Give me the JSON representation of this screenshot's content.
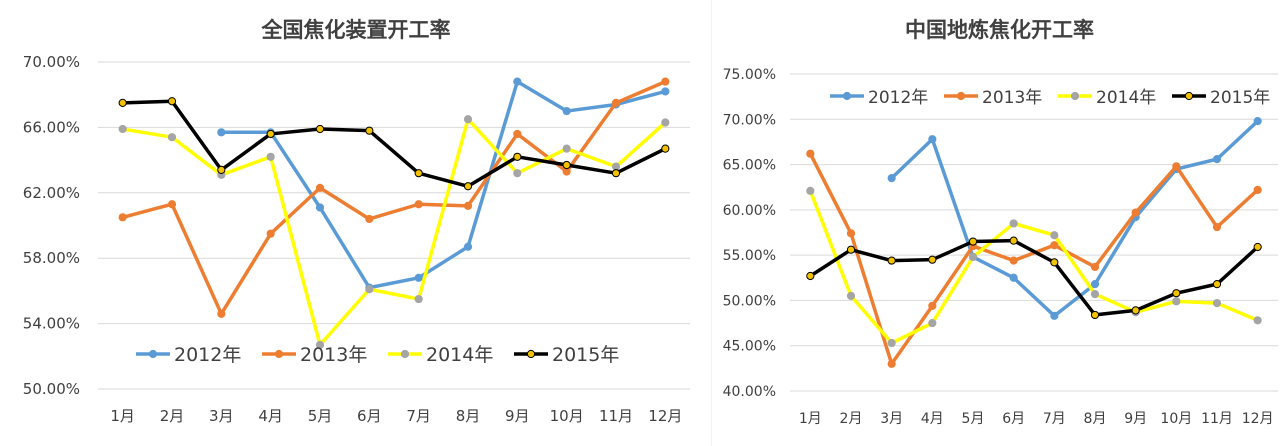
{
  "chart_data": [
    {
      "type": "line",
      "title": "全国焦化装置开工率",
      "categories": [
        "1月",
        "2月",
        "3月",
        "4月",
        "5月",
        "6月",
        "7月",
        "8月",
        "9月",
        "10月",
        "11月",
        "12月"
      ],
      "y_ticks": [
        "50.00%",
        "54.00%",
        "58.00%",
        "62.00%",
        "66.00%",
        "70.00%"
      ],
      "ylim": [
        50,
        70
      ],
      "grid": true,
      "legend_position": "bottom-inside",
      "series": [
        {
          "name": "2012年",
          "color": "#5b9bd5",
          "values": [
            null,
            null,
            65.7,
            65.7,
            61.1,
            56.2,
            56.8,
            58.7,
            68.8,
            67.0,
            67.4,
            68.2
          ]
        },
        {
          "name": "2013年",
          "color": "#ed7d31",
          "values": [
            60.5,
            61.3,
            54.6,
            59.5,
            62.3,
            60.4,
            61.3,
            61.2,
            65.6,
            63.3,
            67.5,
            68.8
          ]
        },
        {
          "name": "2014年",
          "color": "#ffff00",
          "values": [
            65.9,
            65.4,
            63.1,
            64.2,
            52.7,
            56.1,
            55.5,
            66.5,
            63.2,
            64.7,
            63.6,
            66.3
          ]
        },
        {
          "name": "2015年",
          "color": "#000000",
          "values": [
            67.5,
            67.6,
            63.4,
            65.6,
            65.9,
            65.8,
            63.2,
            62.4,
            64.2,
            63.7,
            63.2,
            64.7
          ]
        }
      ]
    },
    {
      "type": "line",
      "title": "中国地炼焦化开工率",
      "categories": [
        "1月",
        "2月",
        "3月",
        "4月",
        "5月",
        "6月",
        "7月",
        "8月",
        "9月",
        "10月",
        "11月",
        "12月"
      ],
      "y_ticks": [
        "40.00%",
        "45.00%",
        "50.00%",
        "55.00%",
        "60.00%",
        "65.00%",
        "70.00%",
        "75.00%"
      ],
      "ylim": [
        40,
        75
      ],
      "grid": true,
      "legend_position": "top-inside",
      "series": [
        {
          "name": "2012年",
          "color": "#5b9bd5",
          "values": [
            null,
            null,
            63.5,
            67.8,
            54.8,
            52.5,
            48.3,
            51.8,
            59.2,
            64.5,
            65.6,
            69.8
          ]
        },
        {
          "name": "2013年",
          "color": "#ed7d31",
          "values": [
            66.2,
            57.4,
            43.0,
            49.4,
            56.0,
            54.4,
            56.1,
            53.7,
            59.7,
            64.8,
            58.1,
            62.2
          ]
        },
        {
          "name": "2014年",
          "color": "#ffff00",
          "values": [
            62.1,
            50.5,
            45.3,
            47.5,
            54.8,
            58.5,
            57.2,
            50.7,
            48.7,
            49.9,
            49.7,
            47.8
          ]
        },
        {
          "name": "2015年",
          "color": "#000000",
          "values": [
            52.7,
            55.6,
            54.4,
            54.5,
            56.5,
            56.6,
            54.2,
            48.4,
            48.9,
            50.8,
            51.8,
            55.9
          ]
        }
      ]
    }
  ]
}
